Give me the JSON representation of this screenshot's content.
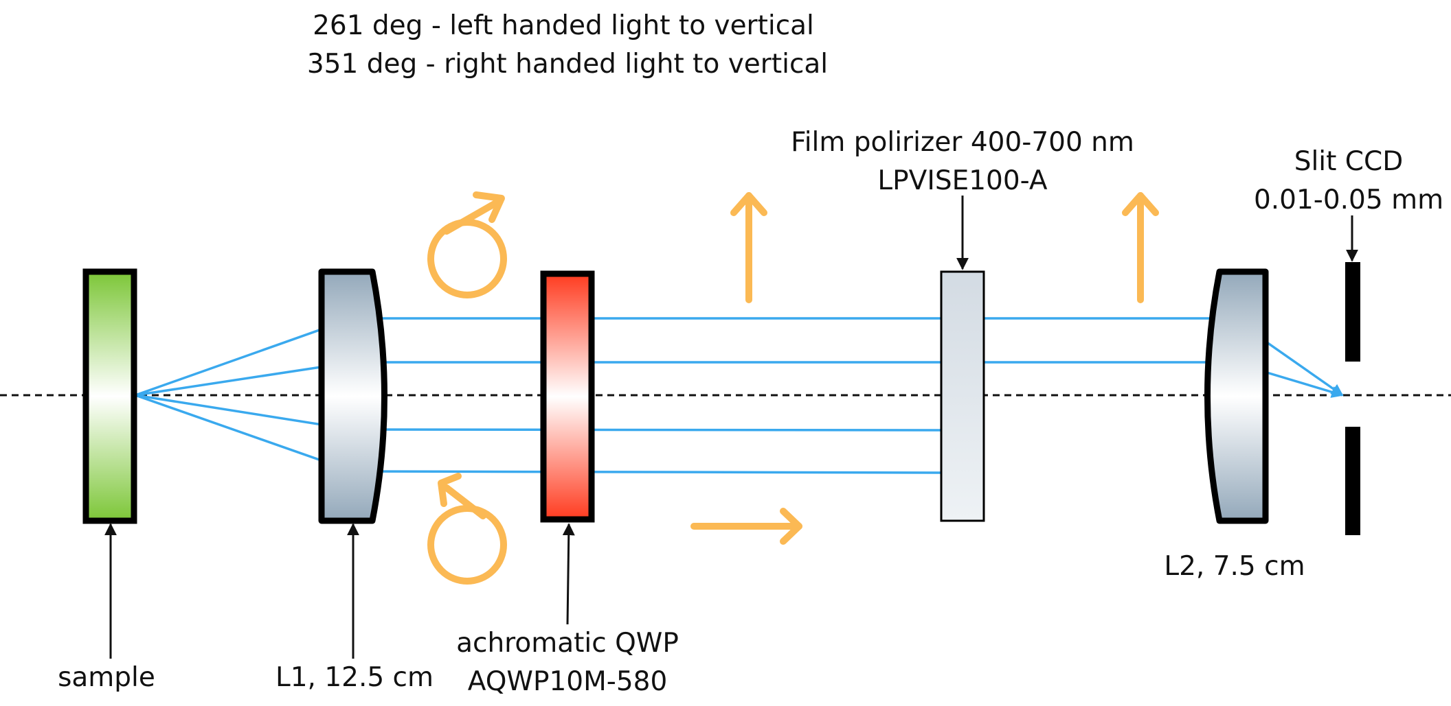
{
  "header": {
    "line1": "261 deg -  left handed light to vertical",
    "line2": "351 deg - right handed light to vertical"
  },
  "components": {
    "sample": "sample",
    "l1": "L1, 12.5 cm",
    "qwp_line1": "achromatic QWP",
    "qwp_line2": "AQWP10M-580",
    "polarizer_line1": "Film polirizer 400-700 nm",
    "polarizer_line2": "LPVISE100-A",
    "l2": "L2, 7.5 cm",
    "slit_line1": "Slit CCD",
    "slit_line2": "0.01-0.05 mm"
  },
  "colors": {
    "ray": "#3aa9ee",
    "polarization": "#fbb954",
    "sample_fill": "#7cc637",
    "qwp_fill": "#ff3b1f",
    "lens_fill": "#93a8ba",
    "polarizer_fill": "#d9e1e8"
  }
}
